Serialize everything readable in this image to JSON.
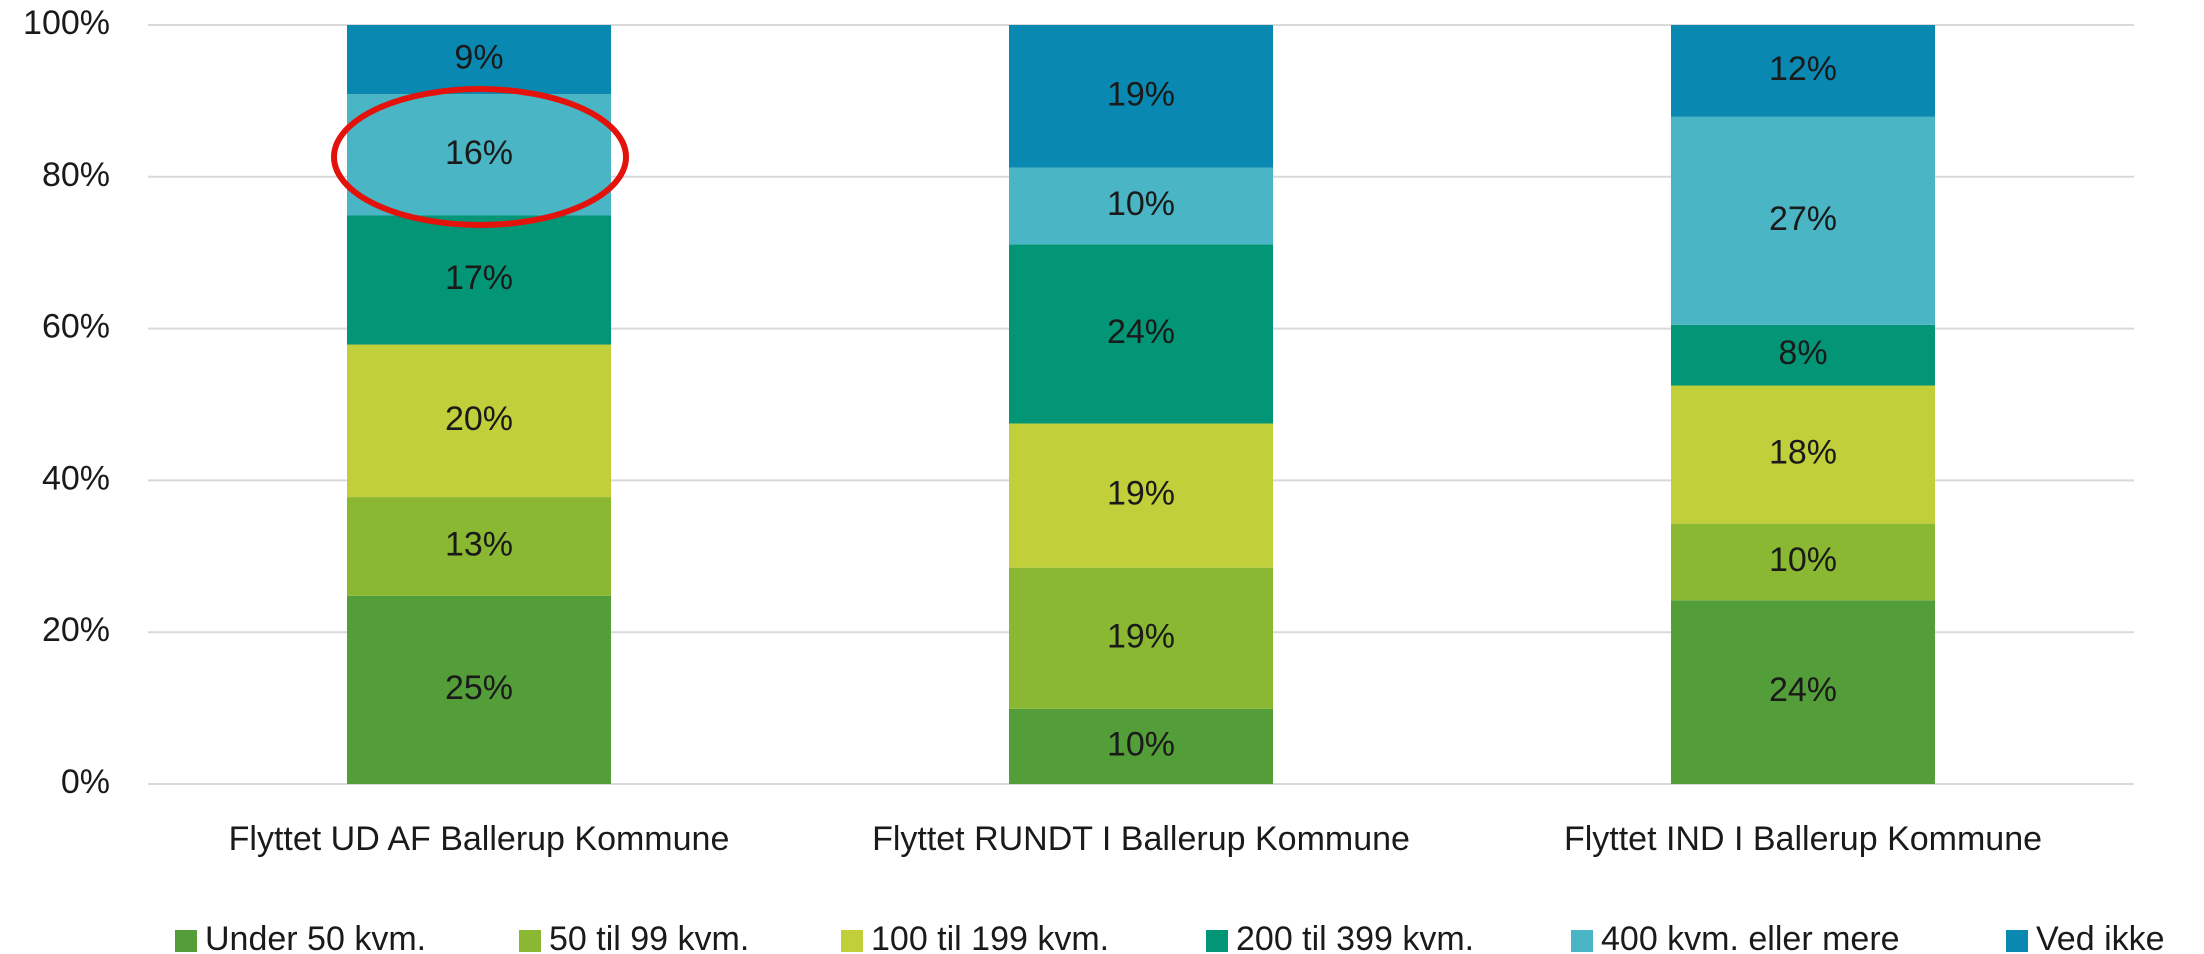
{
  "chart_data": {
    "type": "stacked_bar_100",
    "categories": [
      "Flyttet UD AF Ballerup Kommune",
      "Flyttet RUNDT I Ballerup Kommune",
      "Flyttet IND I Ballerup Kommune"
    ],
    "series": [
      {
        "name": "Under 50 kvm.",
        "color": "#549e39",
        "values": [
          24.8,
          9.9,
          24.2
        ],
        "value_labels": [
          "25%",
          "10%",
          "24%"
        ]
      },
      {
        "name": "50 til 99 kvm.",
        "color": "#8ab833",
        "values": [
          13.0,
          18.6,
          10.1
        ],
        "value_labels": [
          "13%",
          "19%",
          "10%"
        ]
      },
      {
        "name": "100 til 199 kvm.",
        "color": "#c0cf3a",
        "values": [
          20.1,
          19.0,
          18.2
        ],
        "value_labels": [
          "20%",
          "19%",
          "18%"
        ]
      },
      {
        "name": "200 til 399 kvm.",
        "color": "#029676",
        "values": [
          17.0,
          23.6,
          8.0
        ],
        "value_labels": [
          "17%",
          "24%",
          "8%"
        ]
      },
      {
        "name": "400 kvm. eller mere",
        "color": "#4ab5c4",
        "values": [
          16.0,
          10.1,
          27.4
        ],
        "value_labels": [
          "16%",
          "10%",
          "27%"
        ]
      },
      {
        "name": "Ved ikke",
        "color": "#0989b1",
        "values": [
          9.1,
          18.8,
          12.1
        ],
        "value_labels": [
          "9%",
          "19%",
          "12%"
        ]
      }
    ],
    "ylim": [
      0,
      100
    ],
    "yticks": [
      {
        "value": 0,
        "label": "0%"
      },
      {
        "value": 20,
        "label": "20%"
      },
      {
        "value": 40,
        "label": "40%"
      },
      {
        "value": 60,
        "label": "60%"
      },
      {
        "value": 80,
        "label": "80%"
      },
      {
        "value": 100,
        "label": "100%"
      }
    ],
    "grid": true,
    "legend": "bottom"
  }
}
